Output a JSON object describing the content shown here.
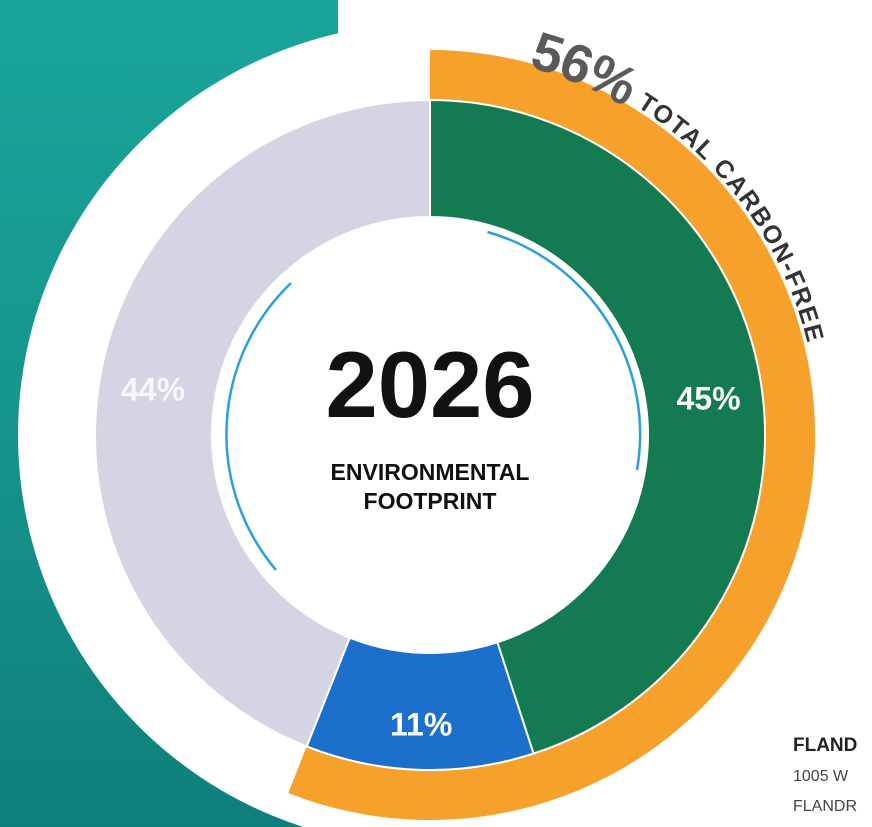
{
  "chart_data": {
    "type": "donut",
    "title": "2026",
    "subtitle": [
      "ENVIRONMENTAL",
      "FOOTPRINT"
    ],
    "values": [
      45,
      11,
      44
    ],
    "value_labels": [
      "45%",
      "11%",
      "44%"
    ],
    "colors": [
      "#137a52",
      "#1c6fcb",
      "#d4d4e4"
    ],
    "outer_ring": {
      "label": "TOTAL CARBON-FREE",
      "value": 56,
      "value_label": "56%",
      "color": "#f5a12c"
    }
  },
  "footer": {
    "lines": [
      "FLAND",
      "1005 W",
      "FLANDR"
    ]
  }
}
